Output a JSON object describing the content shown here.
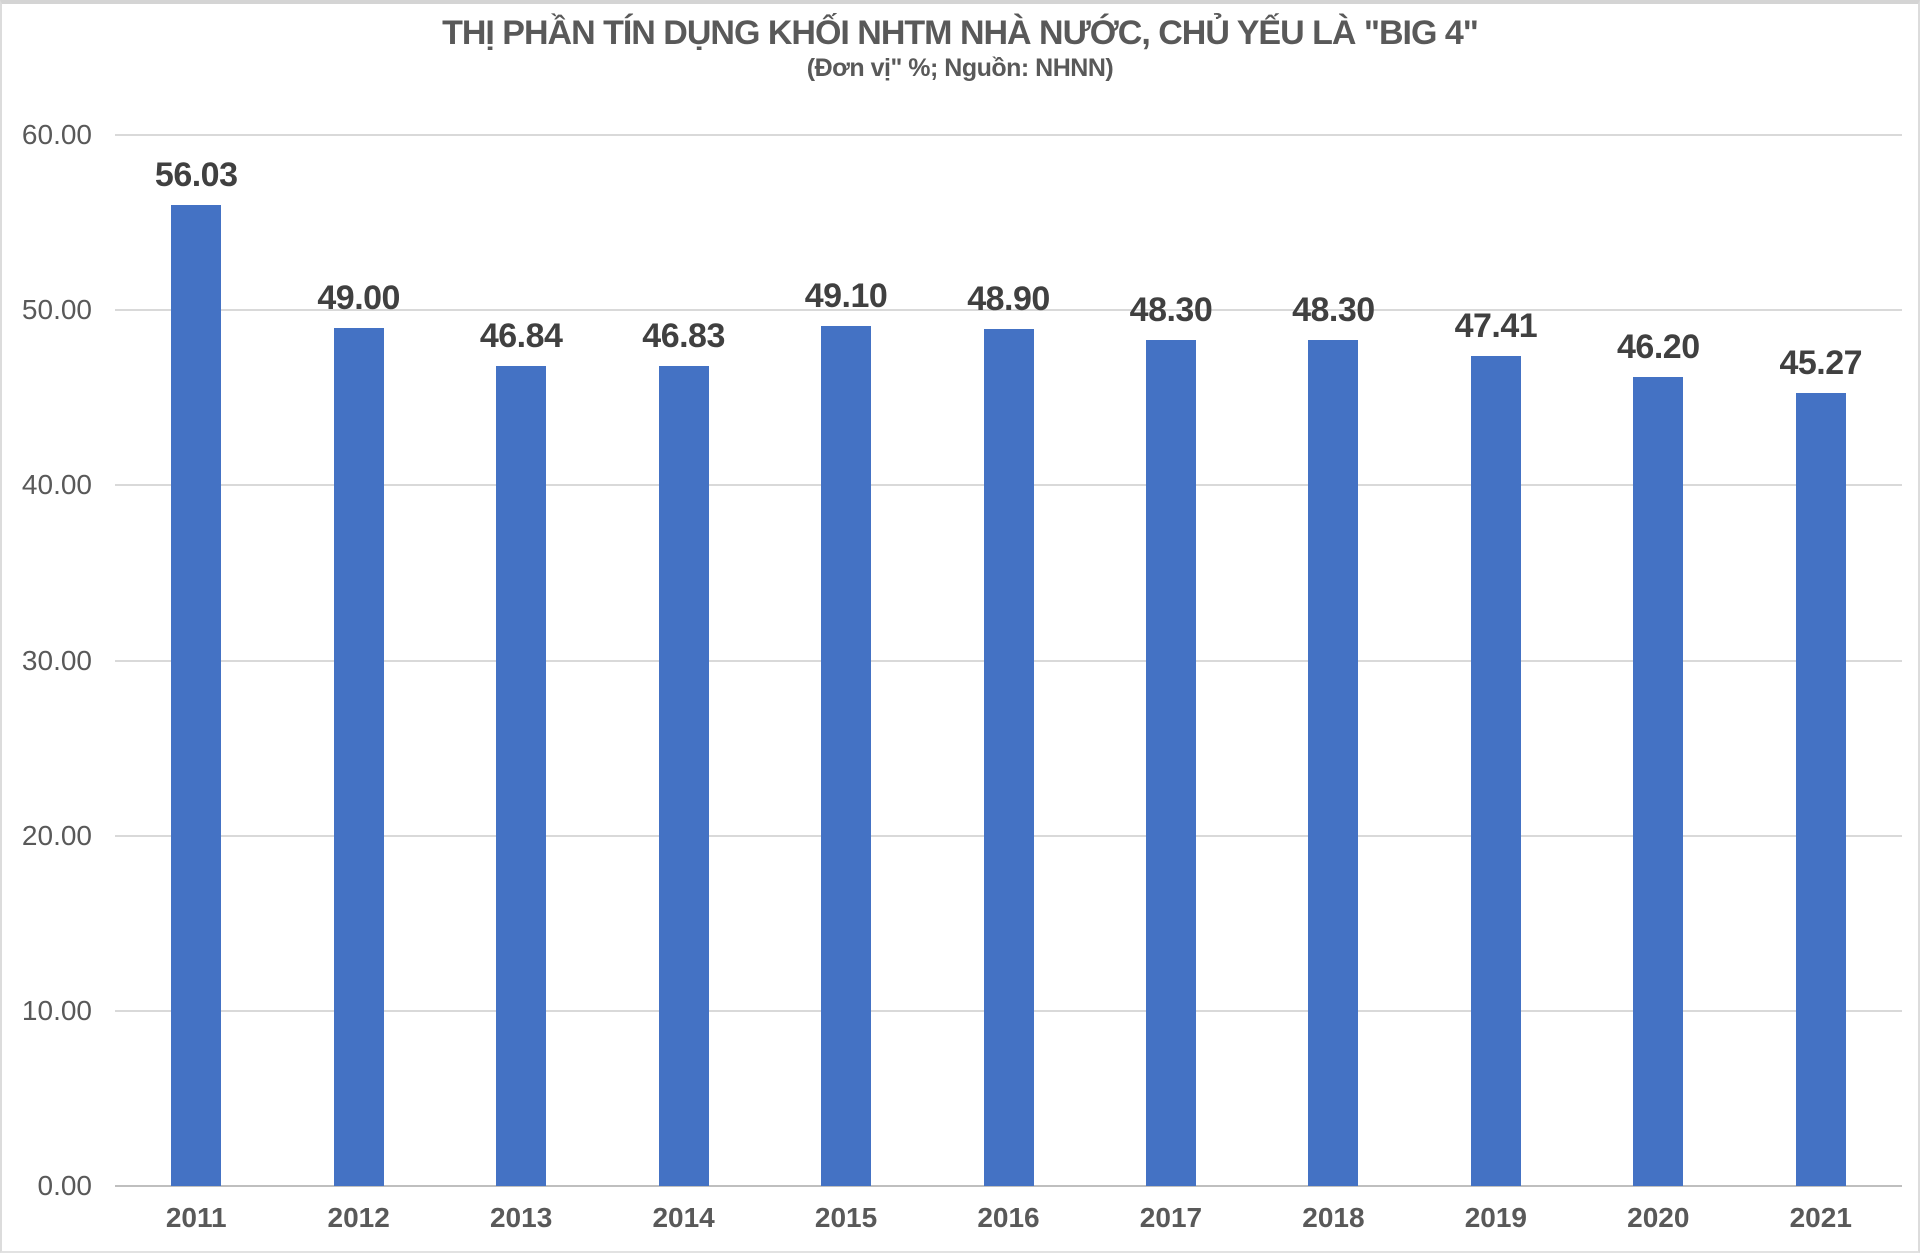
{
  "title": "THỊ PHẦN TÍN DỤNG KHỐI NHTM NHÀ NƯỚC, CHỦ YẾU LÀ \"BIG 4\"",
  "subtitle": "(Đơn vị\" %; Nguồn: NHNN)",
  "colors": {
    "bar": "#4472C4",
    "title_text": "#595959",
    "axis_text": "#595959",
    "data_label_text": "#404040",
    "gridline": "#D9D9D9",
    "baseline": "#BFBFBF",
    "frame_border": "#D6D6D6"
  },
  "chart_data": {
    "type": "bar",
    "title": "THỊ PHẦN TÍN DỤNG KHỐI NHTM NHÀ NƯỚC, CHỦ YẾU LÀ \"BIG 4\"",
    "subtitle": "(Đơn vị\" %; Nguồn: NHNN)",
    "unit": "%",
    "source": "NHNN",
    "categories": [
      "2011",
      "2012",
      "2013",
      "2014",
      "2015",
      "2016",
      "2017",
      "2018",
      "2019",
      "2020",
      "2021"
    ],
    "values": [
      56.03,
      49.0,
      46.84,
      46.83,
      49.1,
      48.9,
      48.3,
      48.3,
      47.41,
      46.2,
      45.27
    ],
    "data_labels": [
      "56.03",
      "49.00",
      "46.84",
      "46.83",
      "49.10",
      "48.90",
      "48.30",
      "48.30",
      "47.41",
      "46.20",
      "45.27"
    ],
    "xlabel": "",
    "ylabel": "",
    "ylim": [
      0,
      60
    ],
    "ytick_interval": 10,
    "ytick_labels": [
      "0.00",
      "10.00",
      "20.00",
      "30.00",
      "40.00",
      "50.00",
      "60.00"
    ],
    "grid": "horizontal",
    "legend": "none",
    "bar_color": "#4472C4"
  }
}
